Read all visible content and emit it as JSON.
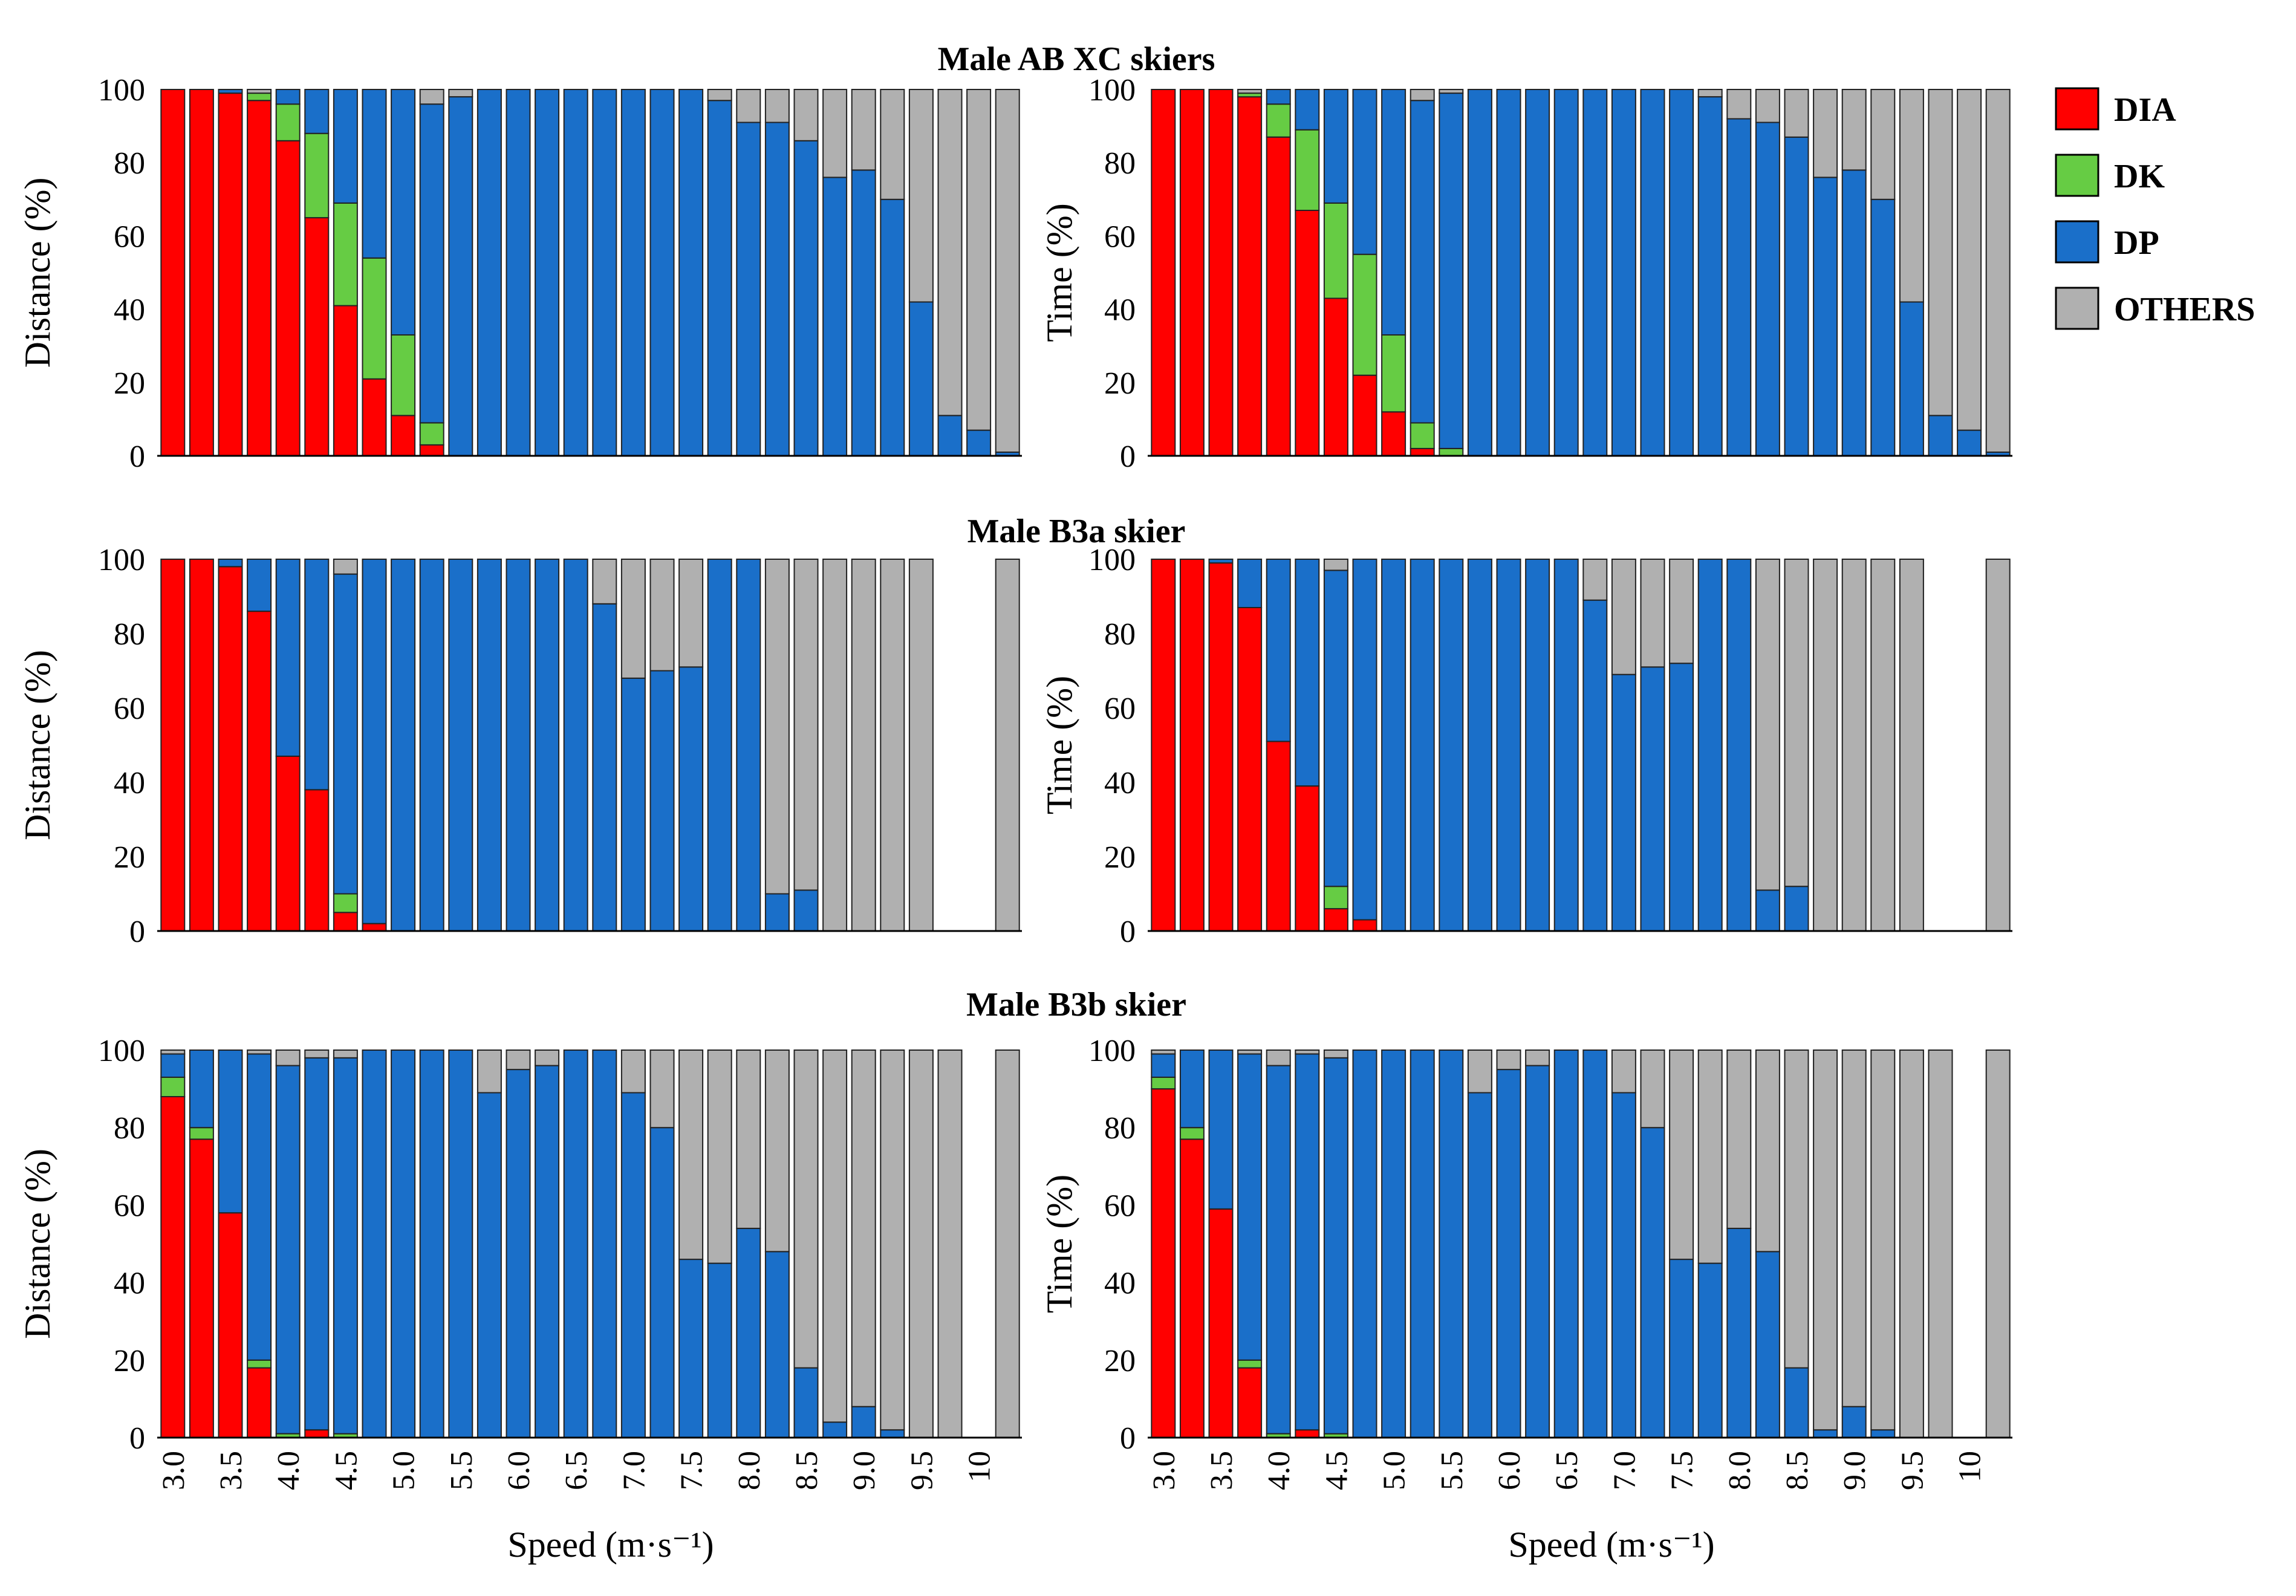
{
  "figure": {
    "row_titles": [
      "Male AB XC skiers",
      "Male B3a skier",
      "Male B3b skier"
    ],
    "xlabel": "Speed (m·s⁻¹)",
    "x_tick_labels": [
      "3.0",
      "3.5",
      "4.0",
      "4.5",
      "5.0",
      "5.5",
      "6.0",
      "6.5",
      "7.0",
      "7.5",
      "8.0",
      "8.5",
      "9.0",
      "9.5",
      "10"
    ],
    "y_tick_labels": [
      "0",
      "20",
      "40",
      "60",
      "80",
      "100"
    ],
    "ylabel_distance": "Distance (%)",
    "ylabel_time": "Time (%)"
  },
  "legend": {
    "items": [
      {
        "label": "DIA",
        "color": "#ff0000"
      },
      {
        "label": "DK",
        "color": "#66cc44"
      },
      {
        "label": "DP",
        "color": "#1a6fc9"
      },
      {
        "label": "OTHERS",
        "color": "#b0b0b0"
      }
    ]
  },
  "chart_data": [
    {
      "type": "bar",
      "stacked": true,
      "title": "Male AB XC skiers",
      "xlabel": "Speed (m·s⁻¹)",
      "ylabel": "Distance (%)",
      "ylim": [
        0,
        100
      ],
      "x_speed_bins": [
        2.75,
        3.0,
        3.25,
        3.5,
        3.75,
        4.0,
        4.25,
        4.5,
        4.75,
        5.0,
        5.25,
        5.5,
        5.75,
        6.0,
        6.25,
        6.5,
        6.75,
        7.0,
        7.25,
        7.5,
        7.75,
        8.0,
        8.25,
        8.5,
        8.75,
        9.0,
        9.25,
        9.5,
        9.75,
        10.0
      ],
      "series": [
        {
          "name": "DIA",
          "values": [
            100,
            100,
            99,
            97,
            86,
            65,
            41,
            21,
            11,
            3,
            0,
            0,
            0,
            0,
            0,
            0,
            0,
            0,
            0,
            0,
            0,
            0,
            0,
            0,
            0,
            0,
            0,
            0,
            0,
            0
          ]
        },
        {
          "name": "DK",
          "values": [
            0,
            0,
            0,
            2,
            10,
            23,
            28,
            33,
            22,
            6,
            0,
            0,
            0,
            0,
            0,
            0,
            0,
            0,
            0,
            0,
            0,
            0,
            0,
            0,
            0,
            0,
            0,
            0,
            0,
            0
          ]
        },
        {
          "name": "DP",
          "values": [
            0,
            0,
            1,
            0,
            4,
            12,
            31,
            46,
            67,
            87,
            98,
            100,
            100,
            100,
            100,
            100,
            100,
            100,
            100,
            97,
            91,
            91,
            86,
            76,
            78,
            70,
            42,
            11,
            7,
            1
          ]
        },
        {
          "name": "OTHERS",
          "values": [
            0,
            0,
            0,
            1,
            0,
            0,
            0,
            0,
            0,
            4,
            2,
            0,
            0,
            0,
            0,
            0,
            0,
            0,
            0,
            3,
            9,
            9,
            14,
            24,
            22,
            30,
            58,
            89,
            93,
            99
          ]
        }
      ]
    },
    {
      "type": "bar",
      "stacked": true,
      "title": "Male AB XC skiers",
      "xlabel": "Speed (m·s⁻¹)",
      "ylabel": "Time (%)",
      "ylim": [
        0,
        100
      ],
      "x_speed_bins": [
        2.75,
        3.0,
        3.25,
        3.5,
        3.75,
        4.0,
        4.25,
        4.5,
        4.75,
        5.0,
        5.25,
        5.5,
        5.75,
        6.0,
        6.25,
        6.5,
        6.75,
        7.0,
        7.25,
        7.5,
        7.75,
        8.0,
        8.25,
        8.5,
        8.75,
        9.0,
        9.25,
        9.5,
        9.75,
        10.0
      ],
      "series": [
        {
          "name": "DIA",
          "values": [
            100,
            100,
            100,
            98,
            87,
            67,
            43,
            22,
            12,
            2,
            0,
            0,
            0,
            0,
            0,
            0,
            0,
            0,
            0,
            0,
            0,
            0,
            0,
            0,
            0,
            0,
            0,
            0,
            0,
            0
          ]
        },
        {
          "name": "DK",
          "values": [
            0,
            0,
            0,
            1,
            9,
            22,
            26,
            33,
            21,
            7,
            2,
            0,
            0,
            0,
            0,
            0,
            0,
            0,
            0,
            0,
            0,
            0,
            0,
            0,
            0,
            0,
            0,
            0,
            0,
            0
          ]
        },
        {
          "name": "DP",
          "values": [
            0,
            0,
            0,
            0,
            4,
            11,
            31,
            45,
            67,
            88,
            97,
            100,
            100,
            100,
            100,
            100,
            100,
            100,
            100,
            98,
            92,
            91,
            87,
            76,
            78,
            70,
            42,
            11,
            7,
            1
          ]
        },
        {
          "name": "OTHERS",
          "values": [
            0,
            0,
            0,
            1,
            0,
            0,
            0,
            0,
            0,
            3,
            1,
            0,
            0,
            0,
            0,
            0,
            0,
            0,
            0,
            2,
            8,
            9,
            13,
            24,
            22,
            30,
            58,
            89,
            93,
            99
          ]
        }
      ]
    },
    {
      "type": "bar",
      "stacked": true,
      "title": "Male B3a skier",
      "xlabel": "Speed (m·s⁻¹)",
      "ylabel": "Distance (%)",
      "ylim": [
        0,
        100
      ],
      "x_speed_bins": [
        2.75,
        3.0,
        3.25,
        3.5,
        3.75,
        4.0,
        4.25,
        4.5,
        4.75,
        5.0,
        5.25,
        5.5,
        5.75,
        6.0,
        6.25,
        6.5,
        6.75,
        7.0,
        7.25,
        7.5,
        7.75,
        8.0,
        8.25,
        8.5,
        8.75,
        9.0,
        9.25,
        9.5,
        9.75,
        10.0
      ],
      "series": [
        {
          "name": "DIA",
          "values": [
            100,
            100,
            98,
            86,
            47,
            38,
            5,
            2,
            0,
            0,
            0,
            0,
            0,
            0,
            0,
            0,
            0,
            0,
            0,
            0,
            0,
            0,
            0,
            0,
            0,
            0,
            0,
            0,
            0,
            0
          ]
        },
        {
          "name": "DK",
          "values": [
            0,
            0,
            0,
            0,
            0,
            0,
            5,
            0,
            0,
            0,
            0,
            0,
            0,
            0,
            0,
            0,
            0,
            0,
            0,
            0,
            0,
            0,
            0,
            0,
            0,
            0,
            0,
            0,
            0,
            0
          ]
        },
        {
          "name": "DP",
          "values": [
            0,
            0,
            2,
            14,
            53,
            62,
            86,
            98,
            100,
            100,
            100,
            100,
            100,
            100,
            100,
            88,
            68,
            70,
            71,
            100,
            100,
            10,
            11,
            0,
            0,
            0,
            0,
            0,
            0,
            0
          ]
        },
        {
          "name": "OTHERS",
          "values": [
            0,
            0,
            0,
            0,
            0,
            0,
            4,
            0,
            0,
            0,
            0,
            0,
            0,
            0,
            0,
            12,
            32,
            30,
            29,
            0,
            0,
            90,
            89,
            100,
            100,
            100,
            100,
            0,
            0,
            100
          ]
        }
      ]
    },
    {
      "type": "bar",
      "stacked": true,
      "title": "Male B3a skier",
      "xlabel": "Speed (m·s⁻¹)",
      "ylabel": "Time (%)",
      "ylim": [
        0,
        100
      ],
      "x_speed_bins": [
        2.75,
        3.0,
        3.25,
        3.5,
        3.75,
        4.0,
        4.25,
        4.5,
        4.75,
        5.0,
        5.25,
        5.5,
        5.75,
        6.0,
        6.25,
        6.5,
        6.75,
        7.0,
        7.25,
        7.5,
        7.75,
        8.0,
        8.25,
        8.5,
        8.75,
        9.0,
        9.25,
        9.5,
        9.75,
        10.0
      ],
      "series": [
        {
          "name": "DIA",
          "values": [
            100,
            100,
            99,
            87,
            51,
            39,
            6,
            3,
            0,
            0,
            0,
            0,
            0,
            0,
            0,
            0,
            0,
            0,
            0,
            0,
            0,
            0,
            0,
            0,
            0,
            0,
            0,
            0,
            0,
            0
          ]
        },
        {
          "name": "DK",
          "values": [
            0,
            0,
            0,
            0,
            0,
            0,
            6,
            0,
            0,
            0,
            0,
            0,
            0,
            0,
            0,
            0,
            0,
            0,
            0,
            0,
            0,
            0,
            0,
            0,
            0,
            0,
            0,
            0,
            0,
            0
          ]
        },
        {
          "name": "DP",
          "values": [
            0,
            0,
            1,
            13,
            49,
            61,
            85,
            97,
            100,
            100,
            100,
            100,
            100,
            100,
            100,
            89,
            69,
            71,
            72,
            100,
            100,
            11,
            12,
            0,
            0,
            0,
            0,
            0,
            0,
            0
          ]
        },
        {
          "name": "OTHERS",
          "values": [
            0,
            0,
            0,
            0,
            0,
            0,
            3,
            0,
            0,
            0,
            0,
            0,
            0,
            0,
            0,
            11,
            31,
            29,
            28,
            0,
            0,
            89,
            88,
            100,
            100,
            100,
            100,
            0,
            0,
            100
          ]
        }
      ]
    },
    {
      "type": "bar",
      "stacked": true,
      "title": "Male B3b skier",
      "xlabel": "Speed (m·s⁻¹)",
      "ylabel": "Distance (%)",
      "ylim": [
        0,
        100
      ],
      "x_speed_bins": [
        2.75,
        3.0,
        3.25,
        3.5,
        3.75,
        4.0,
        4.25,
        4.5,
        4.75,
        5.0,
        5.25,
        5.5,
        5.75,
        6.0,
        6.25,
        6.5,
        6.75,
        7.0,
        7.25,
        7.5,
        7.75,
        8.0,
        8.25,
        8.5,
        8.75,
        9.0,
        9.25,
        9.5,
        9.75,
        10.0
      ],
      "series": [
        {
          "name": "DIA",
          "values": [
            88,
            77,
            58,
            18,
            0,
            2,
            0,
            0,
            0,
            0,
            0,
            0,
            0,
            0,
            0,
            0,
            0,
            0,
            0,
            0,
            0,
            0,
            0,
            0,
            0,
            0,
            0,
            0,
            0,
            0
          ]
        },
        {
          "name": "DK",
          "values": [
            5,
            3,
            0,
            2,
            1,
            0,
            1,
            0,
            0,
            0,
            0,
            0,
            0,
            0,
            0,
            0,
            0,
            0,
            0,
            0,
            0,
            0,
            0,
            0,
            0,
            0,
            0,
            0,
            0,
            0
          ]
        },
        {
          "name": "DP",
          "values": [
            6,
            20,
            42,
            79,
            95,
            96,
            97,
            100,
            100,
            100,
            100,
            89,
            95,
            96,
            100,
            100,
            89,
            80,
            46,
            45,
            54,
            48,
            18,
            4,
            8,
            2,
            0,
            0,
            0,
            0
          ]
        },
        {
          "name": "OTHERS",
          "values": [
            1,
            0,
            0,
            1,
            4,
            2,
            2,
            0,
            0,
            0,
            0,
            11,
            5,
            4,
            0,
            0,
            11,
            20,
            54,
            55,
            46,
            52,
            82,
            96,
            92,
            98,
            100,
            100,
            0,
            100
          ]
        }
      ]
    },
    {
      "type": "bar",
      "stacked": true,
      "title": "Male B3b skier",
      "xlabel": "Speed (m·s⁻¹)",
      "ylabel": "Time (%)",
      "ylim": [
        0,
        100
      ],
      "x_speed_bins": [
        2.75,
        3.0,
        3.25,
        3.5,
        3.75,
        4.0,
        4.25,
        4.5,
        4.75,
        5.0,
        5.25,
        5.5,
        5.75,
        6.0,
        6.25,
        6.5,
        6.75,
        7.0,
        7.25,
        7.5,
        7.75,
        8.0,
        8.25,
        8.5,
        8.75,
        9.0,
        9.25,
        9.5,
        9.75,
        10.0
      ],
      "series": [
        {
          "name": "DIA",
          "values": [
            90,
            77,
            59,
            18,
            0,
            2,
            0,
            0,
            0,
            0,
            0,
            0,
            0,
            0,
            0,
            0,
            0,
            0,
            0,
            0,
            0,
            0,
            0,
            0,
            0,
            0,
            0,
            0,
            0,
            0
          ]
        },
        {
          "name": "DK",
          "values": [
            3,
            3,
            0,
            2,
            1,
            0,
            1,
            0,
            0,
            0,
            0,
            0,
            0,
            0,
            0,
            0,
            0,
            0,
            0,
            0,
            0,
            0,
            0,
            0,
            0,
            0,
            0,
            0,
            0,
            0
          ]
        },
        {
          "name": "DP",
          "values": [
            6,
            20,
            41,
            79,
            95,
            97,
            97,
            100,
            100,
            100,
            100,
            89,
            95,
            96,
            100,
            100,
            89,
            80,
            46,
            45,
            54,
            48,
            18,
            2,
            8,
            2,
            0,
            0,
            0,
            0
          ]
        },
        {
          "name": "OTHERS",
          "values": [
            1,
            0,
            0,
            1,
            4,
            1,
            2,
            0,
            0,
            0,
            0,
            11,
            5,
            4,
            0,
            0,
            11,
            20,
            54,
            55,
            46,
            52,
            82,
            98,
            92,
            98,
            100,
            100,
            0,
            100
          ]
        }
      ]
    }
  ]
}
